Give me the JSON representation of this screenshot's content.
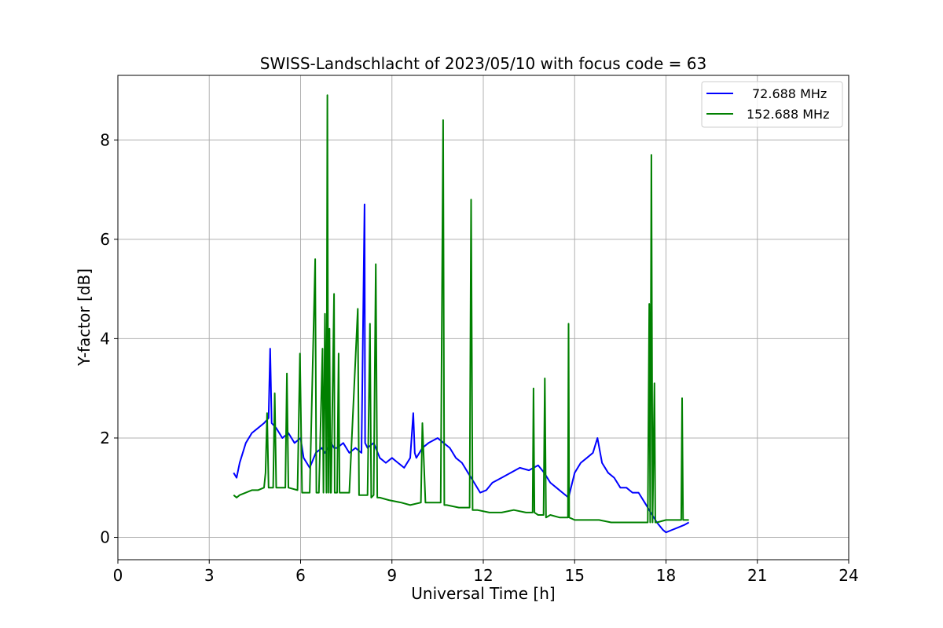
{
  "chart_data": {
    "type": "line",
    "title": "SWISS-Landschlacht of 2023/05/10 with focus code = 63",
    "xlabel": "Universal Time [h]",
    "ylabel": "Y-factor [dB]",
    "xlim": [
      0,
      24
    ],
    "ylim": [
      -0.45,
      9.3
    ],
    "xticks": [
      0,
      3,
      6,
      9,
      12,
      15,
      18,
      21,
      24
    ],
    "yticks": [
      0,
      2,
      4,
      6,
      8
    ],
    "grid": true,
    "legend_position": "top-right",
    "series": [
      {
        "name": "72.688 MHz",
        "color": "#0000ff",
        "x": [
          3.8,
          3.9,
          4.0,
          4.2,
          4.4,
          4.6,
          4.8,
          4.95,
          5.0,
          5.05,
          5.2,
          5.4,
          5.6,
          5.8,
          6.0,
          6.1,
          6.2,
          6.3,
          6.5,
          6.7,
          6.8,
          7.0,
          7.1,
          7.2,
          7.4,
          7.6,
          7.8,
          8.0,
          8.1,
          8.12,
          8.2,
          8.4,
          8.6,
          8.8,
          9.0,
          9.2,
          9.4,
          9.6,
          9.7,
          9.75,
          9.8,
          10.0,
          10.2,
          10.5,
          10.7,
          10.9,
          11.1,
          11.3,
          11.5,
          11.7,
          11.9,
          12.1,
          12.3,
          12.6,
          12.9,
          13.2,
          13.5,
          13.8,
          14.0,
          14.2,
          14.4,
          14.6,
          14.8,
          15.0,
          15.2,
          15.4,
          15.6,
          15.75,
          15.9,
          16.1,
          16.3,
          16.5,
          16.7,
          16.9,
          17.1,
          17.3,
          17.5,
          17.7,
          17.9,
          18.0,
          18.2,
          18.4,
          18.6,
          18.75
        ],
        "y": [
          1.3,
          1.2,
          1.5,
          1.9,
          2.1,
          2.2,
          2.3,
          2.4,
          3.8,
          2.3,
          2.2,
          2.0,
          2.1,
          1.9,
          2.0,
          1.6,
          1.5,
          1.4,
          1.7,
          1.8,
          1.7,
          1.9,
          1.8,
          1.8,
          1.9,
          1.7,
          1.8,
          1.7,
          6.7,
          1.9,
          1.8,
          1.9,
          1.6,
          1.5,
          1.6,
          1.5,
          1.4,
          1.6,
          2.5,
          1.7,
          1.6,
          1.8,
          1.9,
          2.0,
          1.9,
          1.8,
          1.6,
          1.5,
          1.3,
          1.1,
          0.9,
          0.95,
          1.1,
          1.2,
          1.3,
          1.4,
          1.35,
          1.45,
          1.3,
          1.1,
          1.0,
          0.9,
          0.8,
          1.3,
          1.5,
          1.6,
          1.7,
          2.0,
          1.5,
          1.3,
          1.2,
          1.0,
          1.0,
          0.9,
          0.9,
          0.7,
          0.5,
          0.3,
          0.15,
          0.1,
          0.15,
          0.2,
          0.25,
          0.3
        ]
      },
      {
        "name": "152.688 MHz",
        "color": "#008000",
        "x": [
          3.8,
          3.9,
          4.0,
          4.2,
          4.4,
          4.6,
          4.8,
          4.85,
          4.9,
          4.95,
          5.1,
          5.15,
          5.2,
          5.5,
          5.55,
          5.6,
          5.9,
          5.98,
          6.05,
          6.3,
          6.48,
          6.52,
          6.6,
          6.72,
          6.75,
          6.8,
          6.85,
          6.88,
          6.91,
          6.95,
          6.98,
          7.0,
          7.1,
          7.12,
          7.2,
          7.25,
          7.28,
          7.35,
          7.6,
          7.88,
          7.92,
          8.0,
          8.2,
          8.28,
          8.32,
          8.4,
          8.47,
          8.52,
          8.6,
          8.9,
          9.3,
          9.6,
          9.95,
          10.0,
          10.1,
          10.6,
          10.68,
          10.72,
          10.8,
          11.2,
          11.55,
          11.6,
          11.65,
          11.8,
          12.2,
          12.6,
          13.0,
          13.4,
          13.62,
          13.65,
          13.68,
          13.8,
          13.98,
          14.02,
          14.06,
          14.2,
          14.5,
          14.78,
          14.8,
          14.82,
          15.0,
          15.4,
          15.8,
          16.2,
          16.6,
          17.0,
          17.4,
          17.45,
          17.48,
          17.52,
          17.56,
          17.62,
          17.65,
          17.7,
          18.0,
          18.5,
          18.53,
          18.56,
          18.75
        ],
        "y": [
          0.85,
          0.8,
          0.85,
          0.9,
          0.95,
          0.95,
          1.0,
          1.3,
          2.5,
          1.0,
          1.0,
          2.9,
          1.0,
          1.0,
          3.3,
          1.0,
          0.95,
          3.7,
          0.9,
          0.9,
          5.6,
          0.9,
          0.9,
          3.8,
          0.9,
          4.5,
          0.9,
          8.9,
          0.9,
          4.2,
          0.9,
          0.9,
          4.9,
          0.9,
          0.9,
          3.7,
          0.9,
          0.9,
          0.9,
          4.6,
          0.85,
          0.85,
          0.85,
          4.3,
          0.8,
          0.85,
          5.5,
          0.8,
          0.8,
          0.75,
          0.7,
          0.65,
          0.7,
          2.3,
          0.7,
          0.7,
          8.4,
          0.65,
          0.65,
          0.6,
          0.6,
          6.8,
          0.55,
          0.55,
          0.5,
          0.5,
          0.55,
          0.5,
          0.5,
          3.0,
          0.5,
          0.45,
          0.45,
          3.2,
          0.4,
          0.45,
          0.4,
          0.4,
          4.3,
          0.4,
          0.35,
          0.35,
          0.35,
          0.3,
          0.3,
          0.3,
          0.3,
          4.7,
          0.3,
          7.7,
          0.3,
          3.1,
          0.3,
          0.3,
          0.35,
          0.35,
          2.8,
          0.35,
          0.35
        ]
      }
    ]
  }
}
